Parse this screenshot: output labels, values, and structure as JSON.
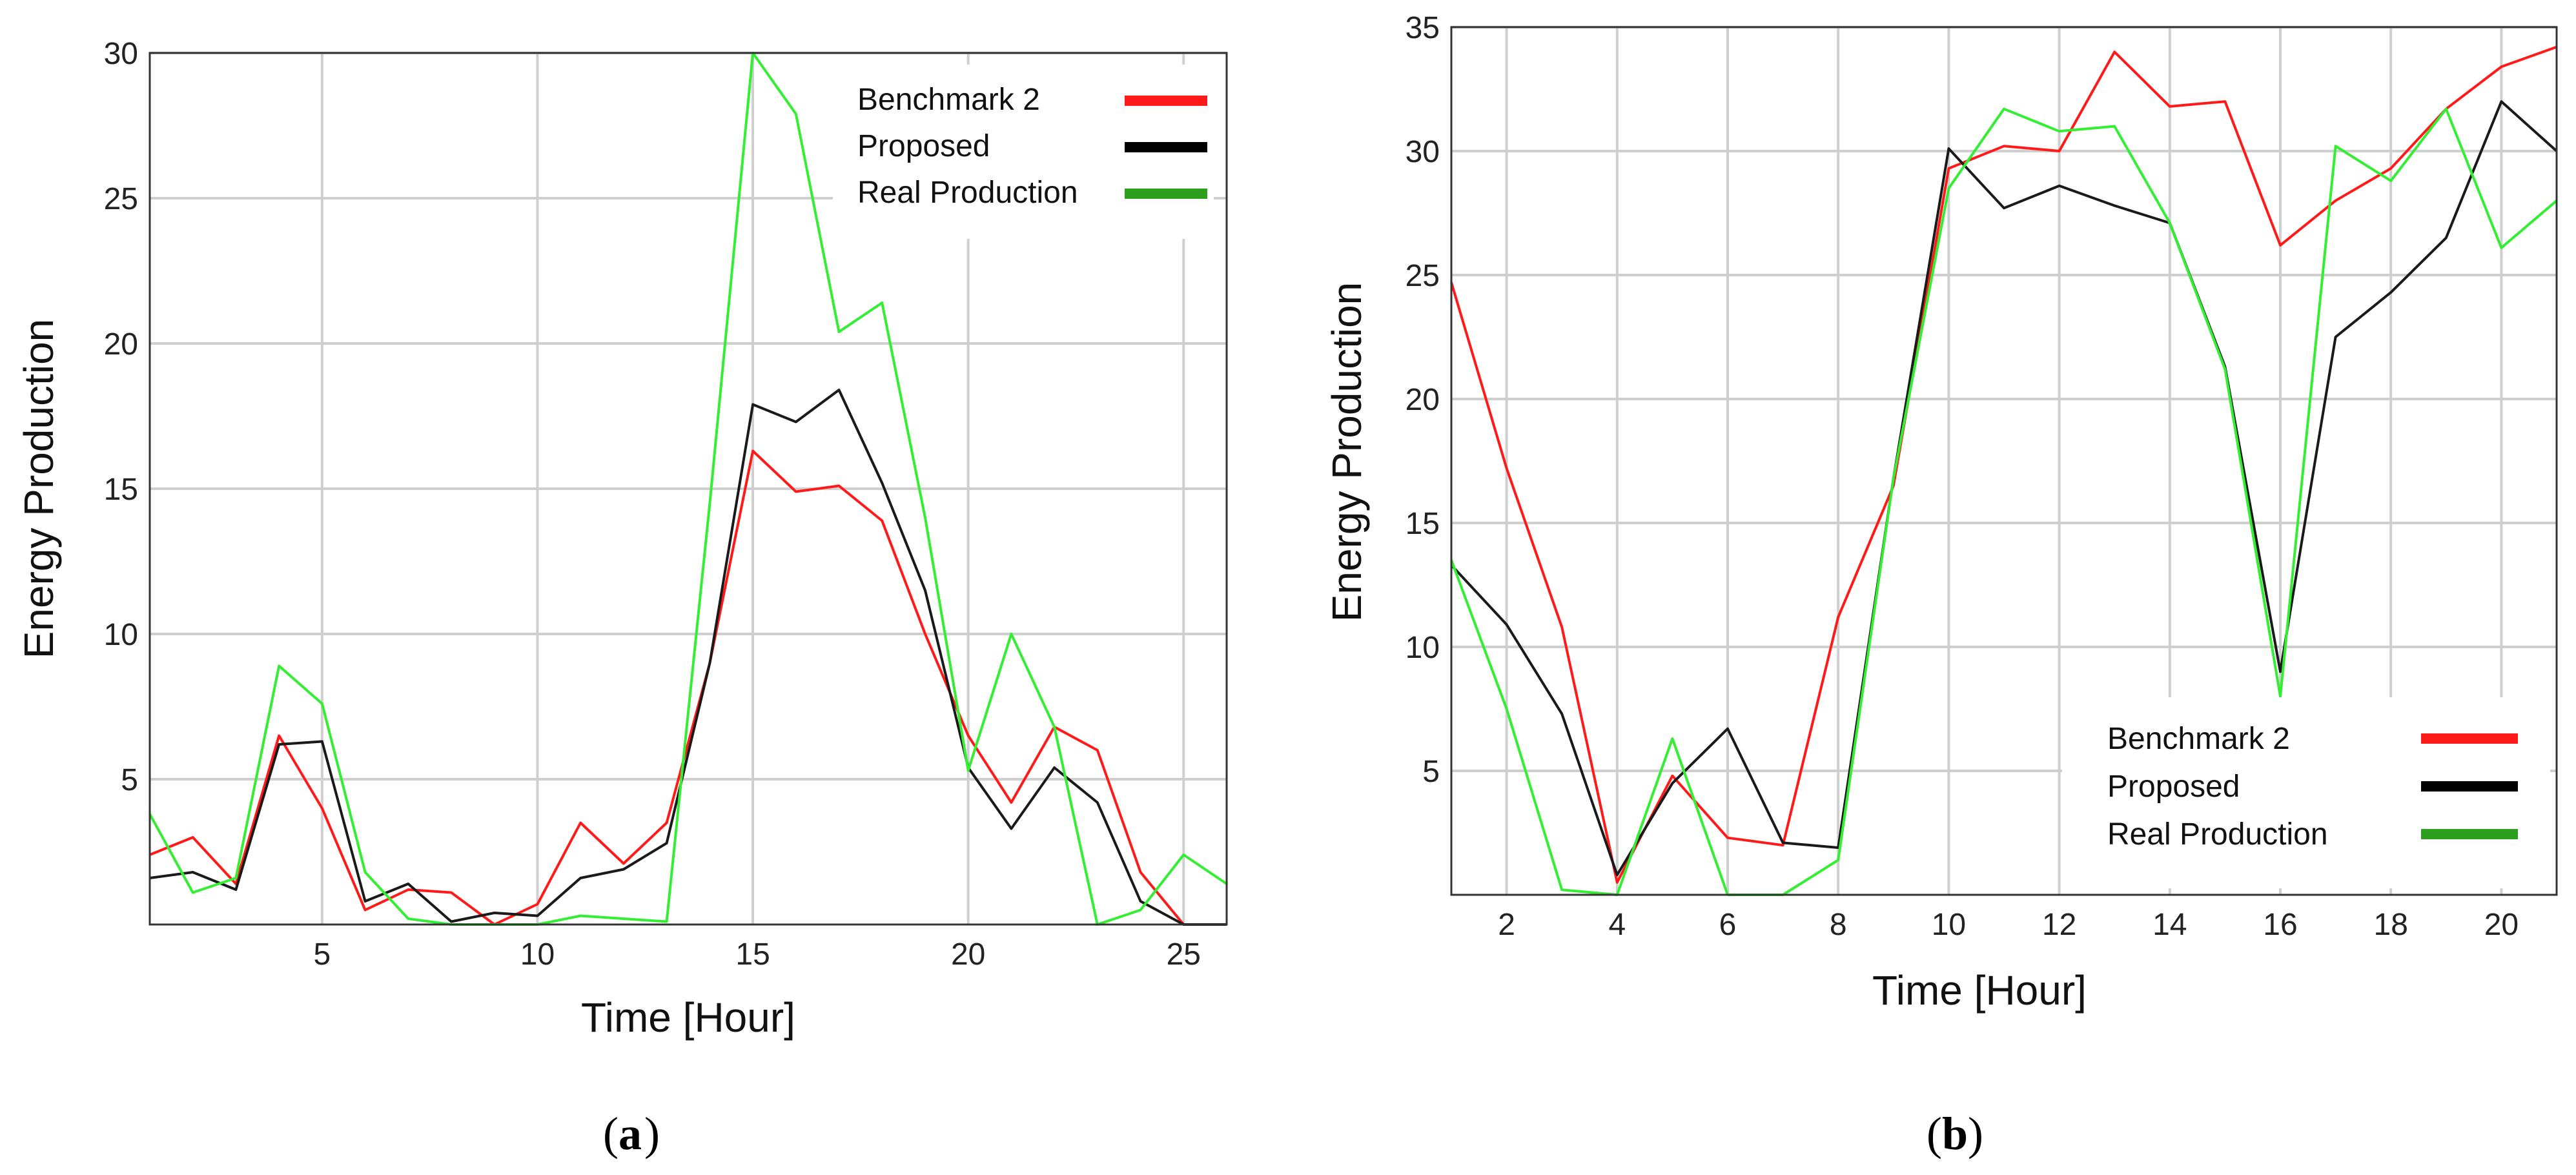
{
  "chart_data": [
    {
      "type": "line",
      "panel_label": "(a)",
      "caption_letter": "a",
      "xlabel": "Time [Hour]",
      "ylabel": "Energy Production",
      "xlim": [
        1,
        26
      ],
      "ylim": [
        0,
        30
      ],
      "xticks": [
        5,
        10,
        15,
        20,
        25
      ],
      "yticks": [
        5,
        10,
        15,
        20,
        25,
        30
      ],
      "grid": true,
      "legend_position": "top-right",
      "x": [
        1,
        2,
        3,
        4,
        5,
        6,
        7,
        8,
        9,
        10,
        11,
        12,
        13,
        14,
        15,
        16,
        17,
        18,
        19,
        20,
        21,
        22,
        23,
        24,
        25,
        26
      ],
      "series": [
        {
          "name": "Benchmark 2",
          "color": "#ff1a1a",
          "values": [
            2.4,
            3.0,
            1.4,
            6.5,
            4.0,
            0.5,
            1.2,
            1.1,
            0.0,
            0.7,
            3.5,
            2.1,
            3.5,
            9.0,
            16.3,
            14.9,
            15.1,
            13.9,
            10.0,
            6.5,
            4.2,
            6.8,
            6.0,
            1.8,
            0.0,
            0.0
          ]
        },
        {
          "name": "Proposed",
          "color": "#1a1a1a",
          "values": [
            1.6,
            1.8,
            1.2,
            6.2,
            6.3,
            0.8,
            1.4,
            0.1,
            0.4,
            0.3,
            1.6,
            1.9,
            2.8,
            9.0,
            17.9,
            17.3,
            18.4,
            15.2,
            11.5,
            5.4,
            3.3,
            5.4,
            4.2,
            0.8,
            0.0,
            0.0
          ]
        },
        {
          "name": "Real Production",
          "color": "#33ee33",
          "values": [
            3.8,
            1.1,
            1.6,
            8.9,
            7.6,
            1.8,
            0.2,
            0.0,
            0.0,
            0.0,
            0.3,
            0.2,
            0.1,
            14.5,
            30.0,
            27.9,
            20.4,
            21.4,
            14.0,
            5.3,
            10.0,
            6.8,
            0.0,
            0.5,
            2.4,
            1.4
          ]
        }
      ]
    },
    {
      "type": "line",
      "panel_label": "(b)",
      "caption_letter": "b",
      "xlabel": "Time [Hour]",
      "ylabel": "Energy Production",
      "xlim": [
        1,
        21
      ],
      "ylim": [
        0,
        35
      ],
      "xticks": [
        2,
        4,
        6,
        8,
        10,
        12,
        14,
        16,
        18,
        20
      ],
      "yticks": [
        5,
        10,
        15,
        20,
        25,
        30,
        35
      ],
      "grid": true,
      "legend_position": "bottom-right",
      "x": [
        1,
        2,
        3,
        4,
        5,
        6,
        7,
        8,
        9,
        10,
        11,
        12,
        13,
        14,
        15,
        16,
        17,
        18,
        19,
        20,
        21
      ],
      "series": [
        {
          "name": "Benchmark 2",
          "color": "#ff1a1a",
          "values": [
            24.7,
            17.2,
            10.8,
            0.5,
            4.8,
            2.3,
            2.0,
            11.2,
            16.5,
            29.3,
            30.2,
            30.0,
            34.0,
            31.8,
            32.0,
            26.2,
            28.0,
            29.3,
            31.7,
            33.4,
            34.2
          ]
        },
        {
          "name": "Proposed",
          "color": "#1a1a1a",
          "values": [
            13.3,
            10.9,
            7.3,
            0.8,
            4.5,
            6.7,
            2.1,
            1.9,
            16.8,
            30.1,
            27.7,
            28.6,
            27.8,
            27.1,
            21.3,
            9.0,
            22.5,
            24.3,
            26.5,
            32.0,
            30.0
          ]
        },
        {
          "name": "Real Production",
          "color": "#33ee33",
          "values": [
            13.5,
            7.5,
            0.2,
            0.0,
            6.3,
            0.0,
            0.0,
            1.4,
            16.8,
            28.5,
            31.7,
            30.8,
            31.0,
            27.1,
            21.2,
            8.0,
            30.2,
            28.8,
            31.7,
            26.1,
            28.0
          ]
        }
      ]
    }
  ]
}
